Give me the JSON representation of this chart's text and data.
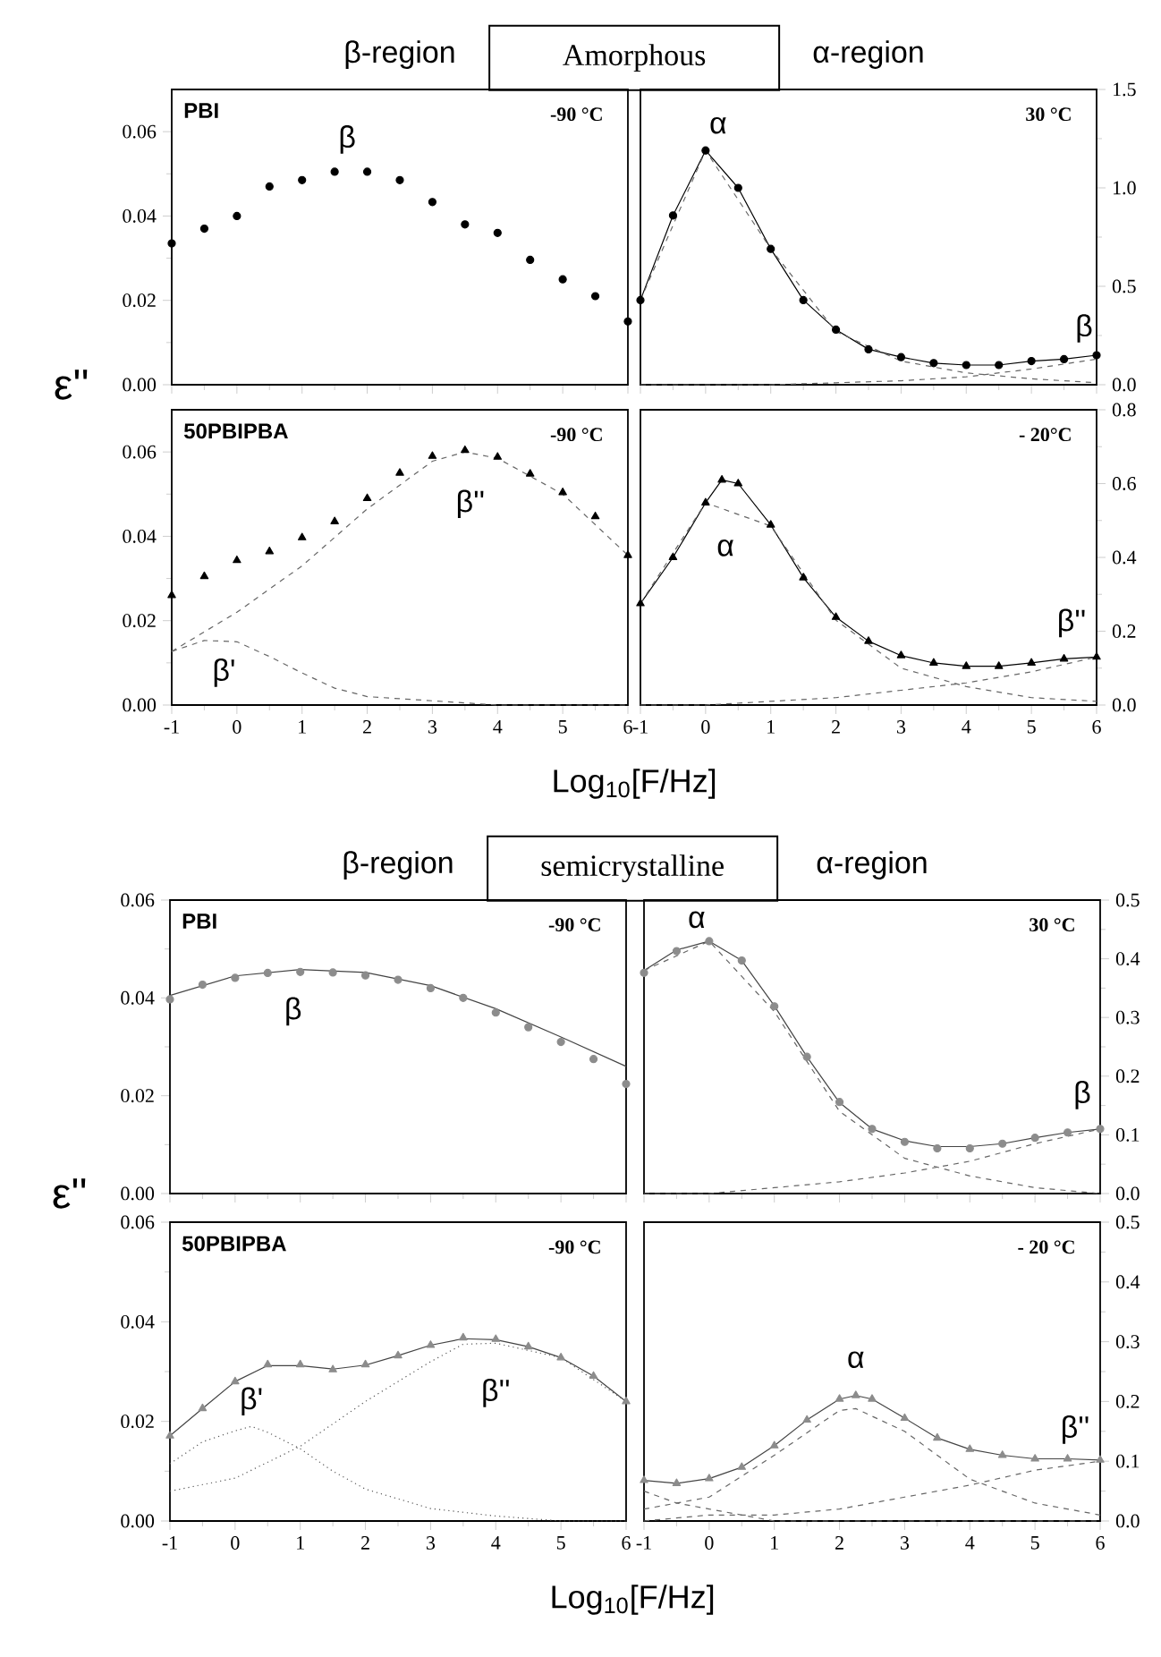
{
  "chart_data": [
    {
      "type": "line",
      "title": "β-region",
      "subtitle": "Amorphous",
      "ylabel": "ε''",
      "annotations": [
        "PBI",
        "-90 °C",
        {
          "text": "β",
          "x": 1.5,
          "y": 0.0505
        }
      ],
      "xlim": [
        -1,
        6
      ],
      "ylim": [
        0,
        0.07
      ],
      "xticks": [
        -1,
        0,
        1,
        2,
        3,
        4,
        5,
        6
      ],
      "yticks": [
        {
          "value": 0,
          "label": "0.00"
        },
        {
          "value": 0.02,
          "label": "0.02"
        },
        {
          "value": 0.04,
          "label": "0.04"
        },
        {
          "value": 0.06,
          "label": "0.06"
        }
      ],
      "tick_labels": "y",
      "series": [
        {
          "type": "scatter",
          "marker": "circle",
          "color": "#000000",
          "x": [
            -1,
            -0.5,
            0,
            0.5,
            1,
            1.5,
            2,
            2.5,
            3,
            3.5,
            4,
            4.5,
            5,
            5.5,
            6
          ],
          "values": [
            0.0335,
            0.037,
            0.04,
            0.047,
            0.0485,
            0.0505,
            0.0505,
            0.0485,
            0.0433,
            0.038,
            0.036,
            0.0296,
            0.025,
            0.021,
            0.015
          ]
        }
      ]
    },
    {
      "type": "line",
      "title": "α-region",
      "annotations": [
        "30 °C",
        {
          "text": "α",
          "x": 0,
          "y": 1.19
        },
        {
          "text": "β",
          "x": 6,
          "y": 0.15
        }
      ],
      "xlim": [
        -1,
        6
      ],
      "ylim": [
        0,
        1.5
      ],
      "xticks": [
        -1,
        0,
        1,
        2,
        3,
        4,
        5,
        6
      ],
      "yticks": [
        {
          "value": 0,
          "label": "0.0"
        },
        {
          "value": 0.5,
          "label": "0.5"
        },
        {
          "value": 1,
          "label": "1.0"
        },
        {
          "value": 1.5,
          "label": "1.5"
        }
      ],
      "tick_labels": "y",
      "series": [
        {
          "type": "scatter",
          "marker": "circle",
          "color": "#000000",
          "x": [
            -1,
            -0.5,
            0,
            0.5,
            1,
            1.5,
            2,
            2.5,
            3,
            3.5,
            4,
            4.5,
            5,
            5.5,
            6
          ],
          "values": [
            0.43,
            0.86,
            1.19,
            1.0,
            0.69,
            0.43,
            0.28,
            0.18,
            0.14,
            0.11,
            0.1,
            0.1,
            0.12,
            0.13,
            0.15
          ]
        },
        {
          "line_style": "solid",
          "color": "#000000",
          "x": [
            -1,
            -0.5,
            0,
            0.5,
            1,
            1.5,
            2,
            2.5,
            3,
            3.5,
            4,
            4.5,
            5,
            5.5,
            6
          ],
          "values": [
            0.43,
            0.86,
            1.19,
            1.0,
            0.69,
            0.43,
            0.28,
            0.18,
            0.14,
            0.11,
            0.1,
            0.1,
            0.12,
            0.13,
            0.15
          ]
        },
        {
          "line_style": "dashed",
          "color": "#666666",
          "x": [
            -1,
            0,
            1,
            2,
            3,
            4,
            5,
            6
          ],
          "values": [
            0.43,
            1.19,
            0.69,
            0.27,
            0.12,
            0.06,
            0.03,
            0.01
          ]
        },
        {
          "line_style": "dashed",
          "color": "#666666",
          "x": [
            -1,
            0,
            1,
            2,
            3,
            4,
            5,
            6
          ],
          "values": [
            0,
            0,
            0,
            0.01,
            0.02,
            0.04,
            0.08,
            0.13
          ]
        }
      ]
    },
    {
      "type": "line",
      "xlabel": "Log$_{10}$[F/Hz]",
      "annotations": [
        "50PBIPBA",
        "-90 °C",
        {
          "text": "β''",
          "x": 3.5,
          "y": 0.0604
        },
        {
          "text": "β'",
          "x": -0.5,
          "y": 0.0153
        }
      ],
      "xlim": [
        -1,
        6
      ],
      "ylim": [
        0,
        0.07
      ],
      "xticks": [
        -1,
        0,
        1,
        2,
        3,
        4,
        5,
        6
      ],
      "yticks": [
        {
          "value": 0,
          "label": "0.00"
        },
        {
          "value": 0.02,
          "label": "0.02"
        },
        {
          "value": 0.04,
          "label": "0.04"
        },
        {
          "value": 0.06,
          "label": "0.06"
        }
      ],
      "series": [
        {
          "type": "scatter",
          "marker": "triangle",
          "color": "#000000",
          "x": [
            -1,
            -0.5,
            0,
            0.5,
            1,
            1.5,
            2,
            2.5,
            3,
            3.5,
            4,
            4.5,
            5,
            5.5,
            6
          ],
          "values": [
            0.026,
            0.0305,
            0.0343,
            0.0364,
            0.0397,
            0.0435,
            0.049,
            0.055,
            0.059,
            0.0604,
            0.0588,
            0.0548,
            0.0504,
            0.0447,
            0.0355
          ]
        },
        {
          "line_style": "dashed",
          "color": "#666666",
          "x": [
            -1,
            0,
            1,
            2,
            3,
            3.5,
            4,
            5,
            6
          ],
          "values": [
            0.0127,
            0.022,
            0.033,
            0.0465,
            0.0578,
            0.06,
            0.0585,
            0.05,
            0.0355
          ]
        },
        {
          "line_style": "dashed",
          "color": "#666666",
          "x": [
            -1,
            -0.5,
            0,
            0.5,
            1,
            1.5,
            2,
            3,
            4,
            6
          ],
          "values": [
            0.0127,
            0.0153,
            0.015,
            0.0115,
            0.0076,
            0.004,
            0.002,
            0.001,
            0,
            0
          ]
        }
      ]
    },
    {
      "type": "line",
      "annotations": [
        "- 20°C",
        {
          "text": "α",
          "x": 0.25,
          "y": 0.61
        },
        {
          "text": "β''",
          "x": 6,
          "y": 0.13
        }
      ],
      "xlim": [
        -1,
        6
      ],
      "ylim": [
        0,
        0.8
      ],
      "xticks": [
        -1,
        0,
        1,
        2,
        3,
        4,
        5,
        6
      ],
      "yticks": [
        {
          "value": 0,
          "label": "0.0"
        },
        {
          "value": 0.2,
          "label": "0.2"
        },
        {
          "value": 0.4,
          "label": "0.4"
        },
        {
          "value": 0.6,
          "label": "0.6"
        },
        {
          "value": 0.8,
          "label": "0.8"
        }
      ],
      "series": [
        {
          "type": "scatter",
          "marker": "triangle",
          "color": "#000000",
          "x": [
            -1,
            -0.5,
            0,
            0.25,
            0.5,
            1,
            1.5,
            2,
            2.5,
            3,
            3.5,
            4,
            4.5,
            5,
            5.5,
            6
          ],
          "values": [
            0.275,
            0.4,
            0.548,
            0.61,
            0.6,
            0.488,
            0.345,
            0.238,
            0.173,
            0.134,
            0.114,
            0.105,
            0.105,
            0.114,
            0.125,
            0.13
          ]
        },
        {
          "line_style": "solid",
          "color": "#000000",
          "x": [
            -1,
            -0.5,
            0,
            0.25,
            0.5,
            1,
            1.5,
            2,
            2.5,
            3,
            3.5,
            4,
            4.5,
            5,
            5.5,
            6
          ],
          "values": [
            0.275,
            0.4,
            0.548,
            0.61,
            0.6,
            0.488,
            0.345,
            0.238,
            0.173,
            0.134,
            0.114,
            0.105,
            0.105,
            0.114,
            0.125,
            0.13
          ]
        },
        {
          "line_style": "dashed",
          "color": "#666666",
          "x": [
            -1,
            0,
            1,
            2,
            3,
            4,
            5,
            6
          ],
          "values": [
            0.275,
            0.548,
            0.485,
            0.23,
            0.1,
            0.05,
            0.02,
            0.01
          ]
        },
        {
          "line_style": "dashed",
          "color": "#666666",
          "x": [
            -1,
            0,
            1,
            2,
            3,
            4,
            5,
            6
          ],
          "values": [
            0,
            0.0,
            0.01,
            0.02,
            0.04,
            0.06,
            0.09,
            0.13
          ]
        }
      ]
    },
    {
      "type": "line",
      "title": "β-region",
      "subtitle": "semicrystalline",
      "ylabel": "ε''",
      "annotations": [
        "PBI",
        "-90 °C",
        {
          "text": "β",
          "x": 1,
          "y": 0.0453
        }
      ],
      "xlim": [
        -1,
        6
      ],
      "ylim": [
        0,
        0.06
      ],
      "xticks": [
        -1,
        0,
        1,
        2,
        3,
        4,
        5,
        6
      ],
      "yticks": [
        {
          "value": 0,
          "label": "0.00"
        },
        {
          "value": 0.02,
          "label": "0.02"
        },
        {
          "value": 0.04,
          "label": "0.04"
        },
        {
          "value": 0.06,
          "label": "0.06"
        }
      ],
      "tick_labels": "y",
      "series": [
        {
          "type": "scatter",
          "marker": "circle",
          "color": "#8c8c8c",
          "x": [
            -1,
            -0.5,
            0,
            0.5,
            1,
            1.5,
            2,
            2.5,
            3,
            3.5,
            4,
            4.5,
            5,
            5.5,
            6
          ],
          "values": [
            0.0397,
            0.0427,
            0.0441,
            0.0451,
            0.0453,
            0.0452,
            0.0446,
            0.0437,
            0.042,
            0.04,
            0.037,
            0.034,
            0.031,
            0.0275,
            0.0224
          ]
        },
        {
          "line_style": "solid",
          "color": "#444444",
          "x": [
            -1,
            0,
            1,
            2,
            3,
            4,
            5,
            6
          ],
          "values": [
            0.0405,
            0.0445,
            0.0458,
            0.0452,
            0.0425,
            0.0378,
            0.032,
            0.026
          ]
        }
      ]
    },
    {
      "type": "line",
      "title": "α-region",
      "annotations": [
        "30 °C",
        {
          "text": "α",
          "x": 0,
          "y": 0.43
        },
        {
          "text": "β",
          "x": 6,
          "y": 0.11
        }
      ],
      "xlim": [
        -1,
        6
      ],
      "ylim": [
        0,
        0.5
      ],
      "xticks": [
        -1,
        0,
        1,
        2,
        3,
        4,
        5,
        6
      ],
      "yticks": [
        {
          "value": 0,
          "label": "0.0"
        },
        {
          "value": 0.1,
          "label": "0.1"
        },
        {
          "value": 0.2,
          "label": "0.2"
        },
        {
          "value": 0.3,
          "label": "0.3"
        },
        {
          "value": 0.4,
          "label": "0.4"
        },
        {
          "value": 0.5,
          "label": "0.5"
        }
      ],
      "tick_labels": "y",
      "series": [
        {
          "type": "scatter",
          "marker": "circle",
          "color": "#8c8c8c",
          "x": [
            -1,
            -0.5,
            0,
            0.5,
            1,
            1.5,
            2,
            2.5,
            3,
            3.5,
            4,
            4.5,
            5,
            5.5,
            6
          ],
          "values": [
            0.376,
            0.413,
            0.43,
            0.397,
            0.319,
            0.233,
            0.156,
            0.11,
            0.088,
            0.077,
            0.077,
            0.085,
            0.095,
            0.104,
            0.11
          ]
        },
        {
          "line_style": "solid",
          "color": "#444444",
          "x": [
            -1,
            -0.5,
            0,
            0.5,
            1,
            1.5,
            2,
            2.5,
            3,
            3.5,
            4,
            4.5,
            5,
            5.5,
            6
          ],
          "values": [
            0.38,
            0.415,
            0.43,
            0.397,
            0.32,
            0.233,
            0.155,
            0.11,
            0.09,
            0.08,
            0.08,
            0.085,
            0.095,
            0.104,
            0.11
          ]
        },
        {
          "line_style": "dashed",
          "color": "#666666",
          "x": [
            -1,
            0,
            1,
            2,
            3,
            4,
            5,
            6
          ],
          "values": [
            0.38,
            0.43,
            0.31,
            0.14,
            0.06,
            0.03,
            0.01,
            0
          ]
        },
        {
          "line_style": "dashed",
          "color": "#666666",
          "x": [
            -1,
            0,
            1,
            2,
            3,
            4,
            5,
            6
          ],
          "values": [
            0,
            0,
            0.01,
            0.02,
            0.035,
            0.055,
            0.085,
            0.11
          ]
        }
      ]
    },
    {
      "type": "line",
      "xlabel": "Log$_{10}$[F/Hz]",
      "annotations": [
        "50PBIPBA",
        "-90 °C",
        {
          "text": "β'",
          "x": 0.25,
          "y": 0.019
        },
        {
          "text": "β''",
          "x": 4,
          "y": 0.0365
        }
      ],
      "xlim": [
        -1,
        6
      ],
      "ylim": [
        0,
        0.06
      ],
      "xticks": [
        -1,
        0,
        1,
        2,
        3,
        4,
        5,
        6
      ],
      "yticks": [
        {
          "value": 0,
          "label": "0.00"
        },
        {
          "value": 0.02,
          "label": "0.02"
        },
        {
          "value": 0.04,
          "label": "0.04"
        },
        {
          "value": 0.06,
          "label": "0.06"
        }
      ],
      "series": [
        {
          "type": "scatter",
          "marker": "triangle",
          "color": "#8c8c8c",
          "x": [
            -1,
            -0.5,
            0,
            0.5,
            1,
            1.5,
            2,
            2.5,
            3,
            3.5,
            4,
            4.5,
            5,
            5.5,
            6
          ],
          "values": [
            0.0171,
            0.0226,
            0.028,
            0.0314,
            0.0314,
            0.0304,
            0.0314,
            0.0332,
            0.0353,
            0.0368,
            0.0365,
            0.035,
            0.0328,
            0.0291,
            0.024
          ]
        },
        {
          "line_style": "solid",
          "color": "#444444",
          "x": [
            -1,
            -0.5,
            0,
            0.5,
            1,
            1.5,
            2,
            2.5,
            3,
            3.5,
            4,
            4.5,
            5,
            5.5,
            6
          ],
          "values": [
            0.0171,
            0.0226,
            0.028,
            0.0312,
            0.0312,
            0.0305,
            0.0313,
            0.0332,
            0.0353,
            0.0366,
            0.0364,
            0.035,
            0.0328,
            0.0291,
            0.024
          ]
        },
        {
          "line_style": "dotted",
          "color": "#555555",
          "x": [
            -1,
            -0.5,
            0,
            0.25,
            0.5,
            1,
            1.5,
            2,
            3,
            4,
            5,
            6
          ],
          "values": [
            0.0115,
            0.0159,
            0.0181,
            0.019,
            0.0178,
            0.0145,
            0.01,
            0.0064,
            0.0025,
            0.001,
            0,
            0
          ]
        },
        {
          "line_style": "dotted",
          "color": "#555555",
          "x": [
            -1,
            0,
            1,
            2,
            3,
            3.5,
            4,
            5,
            6
          ],
          "values": [
            0.006,
            0.0086,
            0.015,
            0.024,
            0.032,
            0.0355,
            0.0357,
            0.0328,
            0.024
          ]
        }
      ]
    },
    {
      "type": "line",
      "annotations": [
        "- 20 °C",
        {
          "text": "α",
          "x": 2.25,
          "y": 0.21
        },
        {
          "text": "β''",
          "x": 6,
          "y": 0.102
        }
      ],
      "xlim": [
        -1,
        6
      ],
      "ylim": [
        0,
        0.5
      ],
      "xticks": [
        -1,
        0,
        1,
        2,
        3,
        4,
        5,
        6
      ],
      "yticks": [
        {
          "value": 0,
          "label": "0.0"
        },
        {
          "value": 0.1,
          "label": "0.1"
        },
        {
          "value": 0.2,
          "label": "0.2"
        },
        {
          "value": 0.3,
          "label": "0.3"
        },
        {
          "value": 0.4,
          "label": "0.4"
        },
        {
          "value": 0.5,
          "label": "0.5"
        }
      ],
      "series": [
        {
          "type": "scatter",
          "marker": "triangle",
          "color": "#8c8c8c",
          "x": [
            -1,
            -0.5,
            0,
            0.5,
            1,
            1.5,
            2,
            2.25,
            2.5,
            3,
            3.5,
            4,
            4.5,
            5,
            5.5,
            6
          ],
          "values": [
            0.068,
            0.063,
            0.071,
            0.09,
            0.126,
            0.169,
            0.204,
            0.21,
            0.204,
            0.172,
            0.139,
            0.12,
            0.11,
            0.104,
            0.104,
            0.102
          ]
        },
        {
          "line_style": "solid",
          "color": "#444444",
          "x": [
            -1,
            -0.5,
            0,
            0.5,
            1,
            1.5,
            2,
            2.25,
            2.5,
            3,
            3.5,
            4,
            4.5,
            5,
            5.5,
            6
          ],
          "values": [
            0.068,
            0.063,
            0.071,
            0.09,
            0.126,
            0.169,
            0.204,
            0.21,
            0.204,
            0.172,
            0.139,
            0.12,
            0.11,
            0.104,
            0.104,
            0.102
          ]
        },
        {
          "line_style": "dashed",
          "color": "#666666",
          "x": [
            -1,
            0,
            1,
            2,
            2.25,
            3,
            4,
            5,
            6
          ],
          "values": [
            0.02,
            0.04,
            0.11,
            0.185,
            0.188,
            0.15,
            0.07,
            0.03,
            0.01
          ]
        },
        {
          "line_style": "dashed",
          "color": "#666666",
          "x": [
            -1,
            -0.5,
            0,
            0.5,
            1,
            2,
            6
          ],
          "values": [
            0.05,
            0.03,
            0.02,
            0.01,
            0,
            0,
            0
          ]
        },
        {
          "line_style": "dashed",
          "color": "#666666",
          "x": [
            -1,
            0,
            1,
            2,
            3,
            4,
            5,
            6
          ],
          "values": [
            0,
            0.01,
            0.01,
            0.02,
            0.04,
            0.06,
            0.085,
            0.1
          ]
        }
      ]
    }
  ]
}
